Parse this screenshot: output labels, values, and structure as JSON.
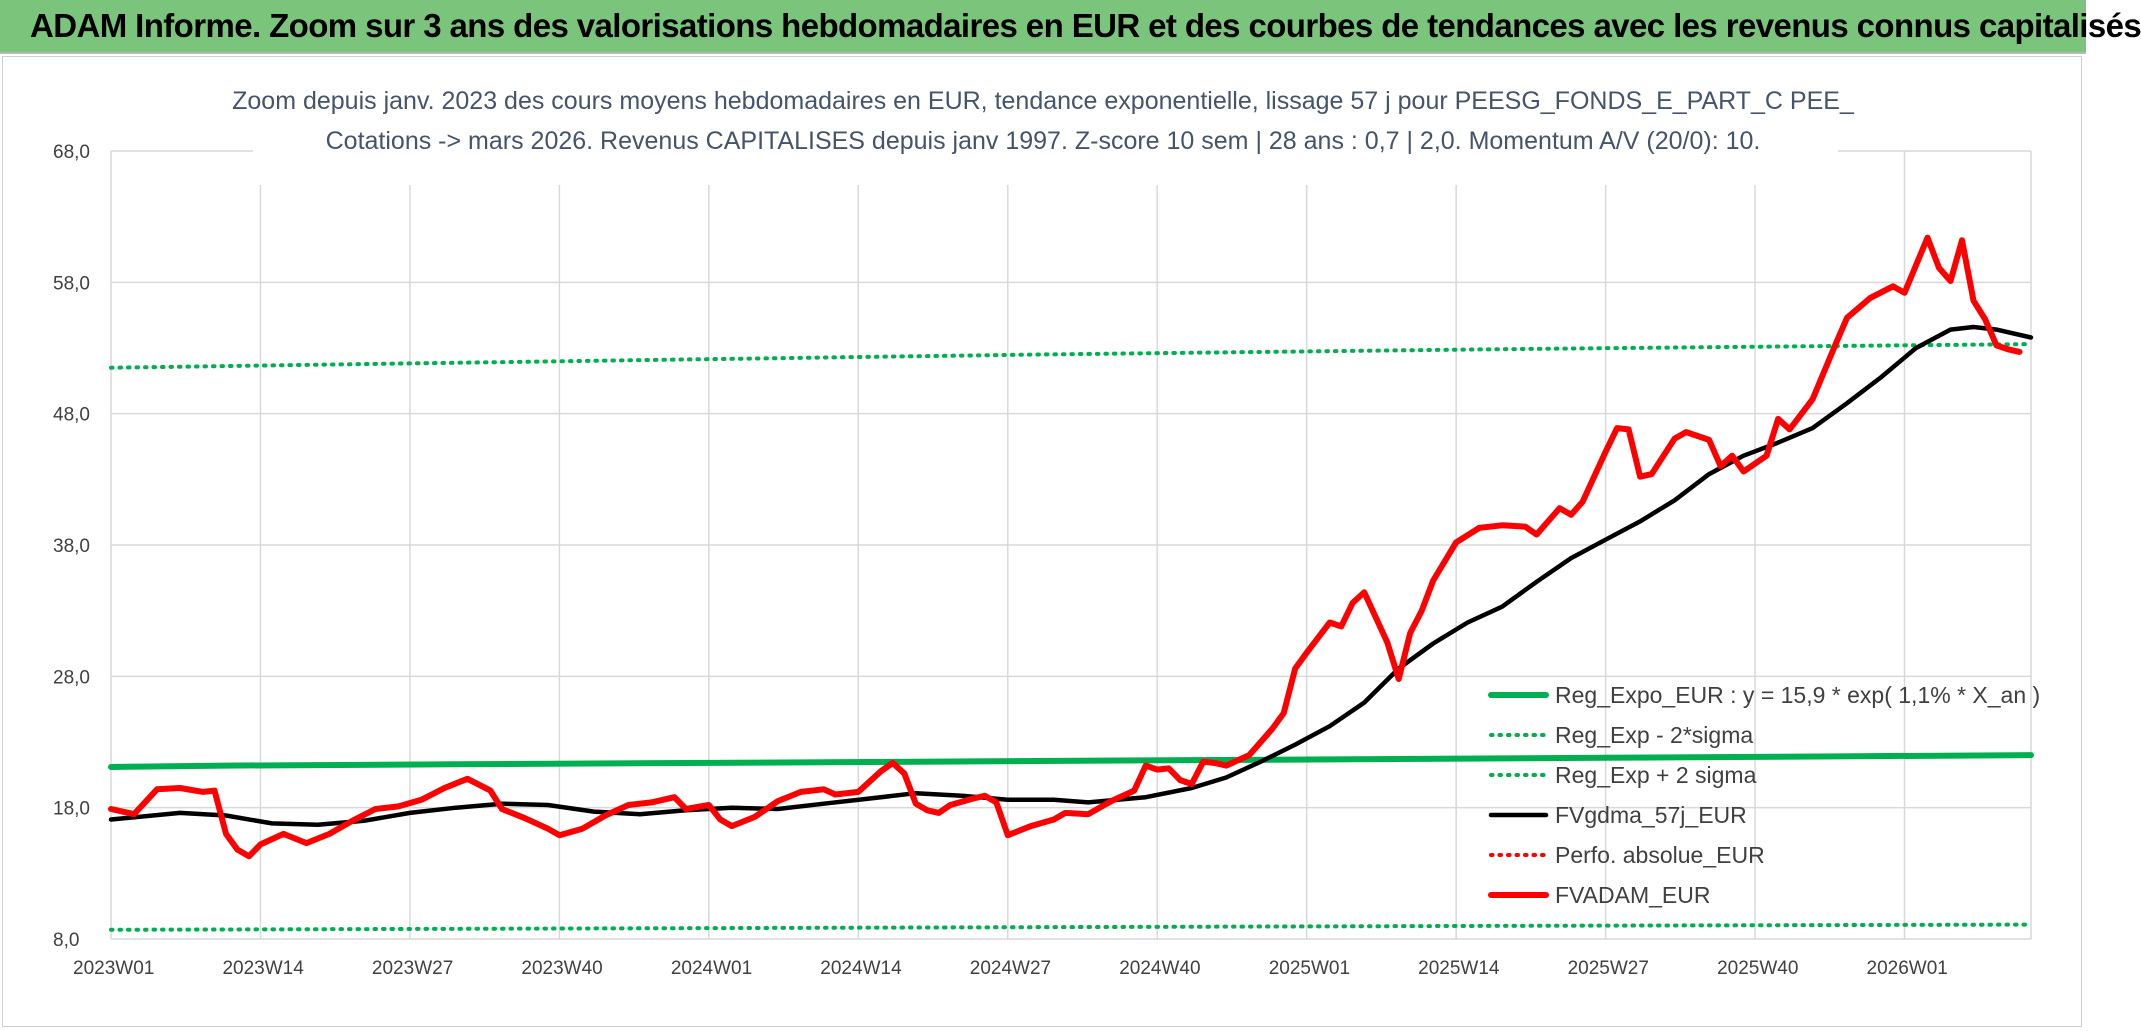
{
  "banner": {
    "title": "ADAM Informe. Zoom sur 3 ans des valorisations hebdomadaires en EUR et des courbes de tendances avec les revenus connus capitalisés"
  },
  "colors": {
    "banner_bg": "#7ac47c",
    "green": "#00b050",
    "red": "#ff0000",
    "black": "#000000",
    "grid": "#d9d9d9",
    "text": "#404040",
    "title_text": "#44546a"
  },
  "chart_data": {
    "type": "line",
    "title": [
      "Zoom depuis janv. 2023 des cours moyens hebdomadaires en EUR, tendance exponentielle, lissage 57 j pour PEESG_FONDS_E_PART_C PEE_",
      "Cotations -> mars 2026. Revenus CAPITALISES depuis janv 1997. Z-score 10 sem | 28 ans : 0,7 | 2,0. Momentum A/V (20/0): 10."
    ],
    "xlabel": "",
    "ylabel": "",
    "ylim": [
      8,
      68
    ],
    "yticks": [
      "8,0",
      "18,0",
      "28,0",
      "38,0",
      "48,0",
      "58,0",
      "68,0"
    ],
    "xticks": [
      "2023W01",
      "2023W14",
      "2023W27",
      "2023W40",
      "2024W01",
      "2024W14",
      "2024W27",
      "2024W40",
      "2025W01",
      "2025W14",
      "2025W27",
      "2025W40",
      "2026W01"
    ],
    "grid": true,
    "legend_position": "bottom-right",
    "legend": [
      "Reg_Expo_EUR : y = 15,9 * exp( 1,1% *  X_an )",
      "Reg_Exp - 2*sigma",
      "Reg_Exp + 2 sigma",
      "FVgdma_57j_EUR",
      "Perfo. absolue_EUR",
      "FVADAM_EUR"
    ],
    "x_start": "2023W01",
    "x_end": "2026W13",
    "series": [
      {
        "name": "Reg_Expo_EUR : y = 15,9 * exp( 1,1% *  X_an )",
        "style": "solid-thick",
        "color": "#00b050",
        "points": [
          [
            0,
            21.1
          ],
          [
            10,
            21.2
          ],
          [
            30,
            21.3
          ],
          [
            50,
            21.4
          ],
          [
            70,
            21.5
          ],
          [
            90,
            21.6
          ],
          [
            110,
            21.7
          ],
          [
            130,
            21.8
          ],
          [
            150,
            21.9
          ],
          [
            167,
            22.0
          ]
        ]
      },
      {
        "name": "Reg_Exp - 2*sigma",
        "style": "dotted",
        "color": "#00b050",
        "points": [
          [
            0,
            8.7
          ],
          [
            40,
            8.8
          ],
          [
            80,
            8.9
          ],
          [
            120,
            9.0
          ],
          [
            167,
            9.1
          ]
        ]
      },
      {
        "name": "Reg_Exp + 2 sigma",
        "style": "dotted",
        "color": "#00b050",
        "points": [
          [
            0,
            51.5
          ],
          [
            40,
            52.0
          ],
          [
            80,
            52.5
          ],
          [
            120,
            52.9
          ],
          [
            167,
            53.3
          ]
        ]
      },
      {
        "name": "FVgdma_57j_EUR",
        "style": "solid",
        "color": "#000000",
        "points": [
          [
            0,
            17.1
          ],
          [
            6,
            17.6
          ],
          [
            10,
            17.4
          ],
          [
            14,
            16.8
          ],
          [
            18,
            16.7
          ],
          [
            22,
            17.0
          ],
          [
            26,
            17.6
          ],
          [
            30,
            18.0
          ],
          [
            34,
            18.3
          ],
          [
            38,
            18.2
          ],
          [
            42,
            17.7
          ],
          [
            46,
            17.5
          ],
          [
            50,
            17.8
          ],
          [
            54,
            18.0
          ],
          [
            58,
            17.9
          ],
          [
            62,
            18.3
          ],
          [
            66,
            18.7
          ],
          [
            70,
            19.1
          ],
          [
            74,
            18.9
          ],
          [
            78,
            18.6
          ],
          [
            82,
            18.6
          ],
          [
            85,
            18.4
          ],
          [
            90,
            18.8
          ],
          [
            94,
            19.5
          ],
          [
            97,
            20.3
          ],
          [
            100,
            21.5
          ],
          [
            103,
            22.8
          ],
          [
            106,
            24.2
          ],
          [
            109,
            26.0
          ],
          [
            112,
            28.6
          ],
          [
            115,
            30.5
          ],
          [
            118,
            32.1
          ],
          [
            121,
            33.3
          ],
          [
            124,
            35.2
          ],
          [
            127,
            37.0
          ],
          [
            130,
            38.4
          ],
          [
            133,
            39.8
          ],
          [
            136,
            41.4
          ],
          [
            139,
            43.4
          ],
          [
            142,
            44.8
          ],
          [
            145,
            45.8
          ],
          [
            148,
            46.9
          ],
          [
            151,
            48.8
          ],
          [
            154,
            50.8
          ],
          [
            157,
            53.0
          ],
          [
            160,
            54.4
          ],
          [
            162,
            54.6
          ],
          [
            164,
            54.4
          ],
          [
            167,
            53.8
          ]
        ]
      },
      {
        "name": "Perfo. absolue_EUR",
        "style": "dotted",
        "color": "#ff0000",
        "points": []
      },
      {
        "name": "FVADAM_EUR",
        "style": "solid-thick",
        "color": "#ff0000",
        "points": [
          [
            0,
            17.9
          ],
          [
            2,
            17.5
          ],
          [
            4,
            19.4
          ],
          [
            6,
            19.5
          ],
          [
            8,
            19.2
          ],
          [
            9,
            19.3
          ],
          [
            10,
            16.0
          ],
          [
            11,
            14.8
          ],
          [
            12,
            14.3
          ],
          [
            13,
            15.2
          ],
          [
            15,
            16.0
          ],
          [
            17,
            15.3
          ],
          [
            19,
            16.0
          ],
          [
            21,
            17.0
          ],
          [
            23,
            17.9
          ],
          [
            25,
            18.1
          ],
          [
            27,
            18.6
          ],
          [
            29,
            19.5
          ],
          [
            31,
            20.2
          ],
          [
            33,
            19.3
          ],
          [
            34,
            17.9
          ],
          [
            36,
            17.2
          ],
          [
            38,
            16.4
          ],
          [
            39,
            15.9
          ],
          [
            41,
            16.4
          ],
          [
            43,
            17.4
          ],
          [
            45,
            18.2
          ],
          [
            47,
            18.4
          ],
          [
            49,
            18.8
          ],
          [
            50,
            17.9
          ],
          [
            52,
            18.2
          ],
          [
            53,
            17.1
          ],
          [
            54,
            16.6
          ],
          [
            56,
            17.3
          ],
          [
            58,
            18.5
          ],
          [
            60,
            19.2
          ],
          [
            62,
            19.4
          ],
          [
            63,
            19.0
          ],
          [
            65,
            19.2
          ],
          [
            67,
            20.8
          ],
          [
            68,
            21.4
          ],
          [
            69,
            20.6
          ],
          [
            70,
            18.3
          ],
          [
            71,
            17.8
          ],
          [
            72,
            17.6
          ],
          [
            73,
            18.2
          ],
          [
            75,
            18.7
          ],
          [
            76,
            18.9
          ],
          [
            77,
            18.4
          ],
          [
            78,
            15.9
          ],
          [
            80,
            16.6
          ],
          [
            82,
            17.1
          ],
          [
            83,
            17.6
          ],
          [
            85,
            17.5
          ],
          [
            87,
            18.5
          ],
          [
            89,
            19.3
          ],
          [
            90,
            21.2
          ],
          [
            91,
            20.9
          ],
          [
            92,
            21.0
          ],
          [
            93,
            20.1
          ],
          [
            94,
            19.8
          ],
          [
            95,
            21.5
          ],
          [
            96,
            21.4
          ],
          [
            97,
            21.2
          ],
          [
            99,
            22.0
          ],
          [
            101,
            24.0
          ],
          [
            102,
            25.2
          ],
          [
            103,
            28.6
          ],
          [
            104,
            29.8
          ],
          [
            106,
            32.1
          ],
          [
            107,
            31.8
          ],
          [
            108,
            33.6
          ],
          [
            109,
            34.4
          ],
          [
            111,
            30.6
          ],
          [
            112,
            27.8
          ],
          [
            113,
            31.3
          ],
          [
            114,
            33.0
          ],
          [
            115,
            35.3
          ],
          [
            117,
            38.2
          ],
          [
            119,
            39.3
          ],
          [
            121,
            39.5
          ],
          [
            123,
            39.4
          ],
          [
            124,
            38.8
          ],
          [
            126,
            40.8
          ],
          [
            127,
            40.3
          ],
          [
            128,
            41.3
          ],
          [
            130,
            45.1
          ],
          [
            131,
            46.9
          ],
          [
            132,
            46.8
          ],
          [
            133,
            43.2
          ],
          [
            134,
            43.4
          ],
          [
            136,
            46.1
          ],
          [
            137,
            46.6
          ],
          [
            139,
            46.0
          ],
          [
            140,
            44.0
          ],
          [
            141,
            44.8
          ],
          [
            142,
            43.6
          ],
          [
            144,
            44.8
          ],
          [
            145,
            47.6
          ],
          [
            146,
            46.8
          ],
          [
            148,
            49.1
          ],
          [
            150,
            53.3
          ],
          [
            151,
            55.3
          ],
          [
            153,
            56.8
          ],
          [
            155,
            57.7
          ],
          [
            156,
            57.2
          ],
          [
            158,
            61.4
          ],
          [
            159,
            59.1
          ],
          [
            160,
            58.1
          ],
          [
            161,
            61.2
          ],
          [
            162,
            56.6
          ],
          [
            163,
            55.2
          ],
          [
            164,
            53.2
          ],
          [
            165,
            52.9
          ],
          [
            166,
            52.7
          ]
        ]
      }
    ]
  }
}
